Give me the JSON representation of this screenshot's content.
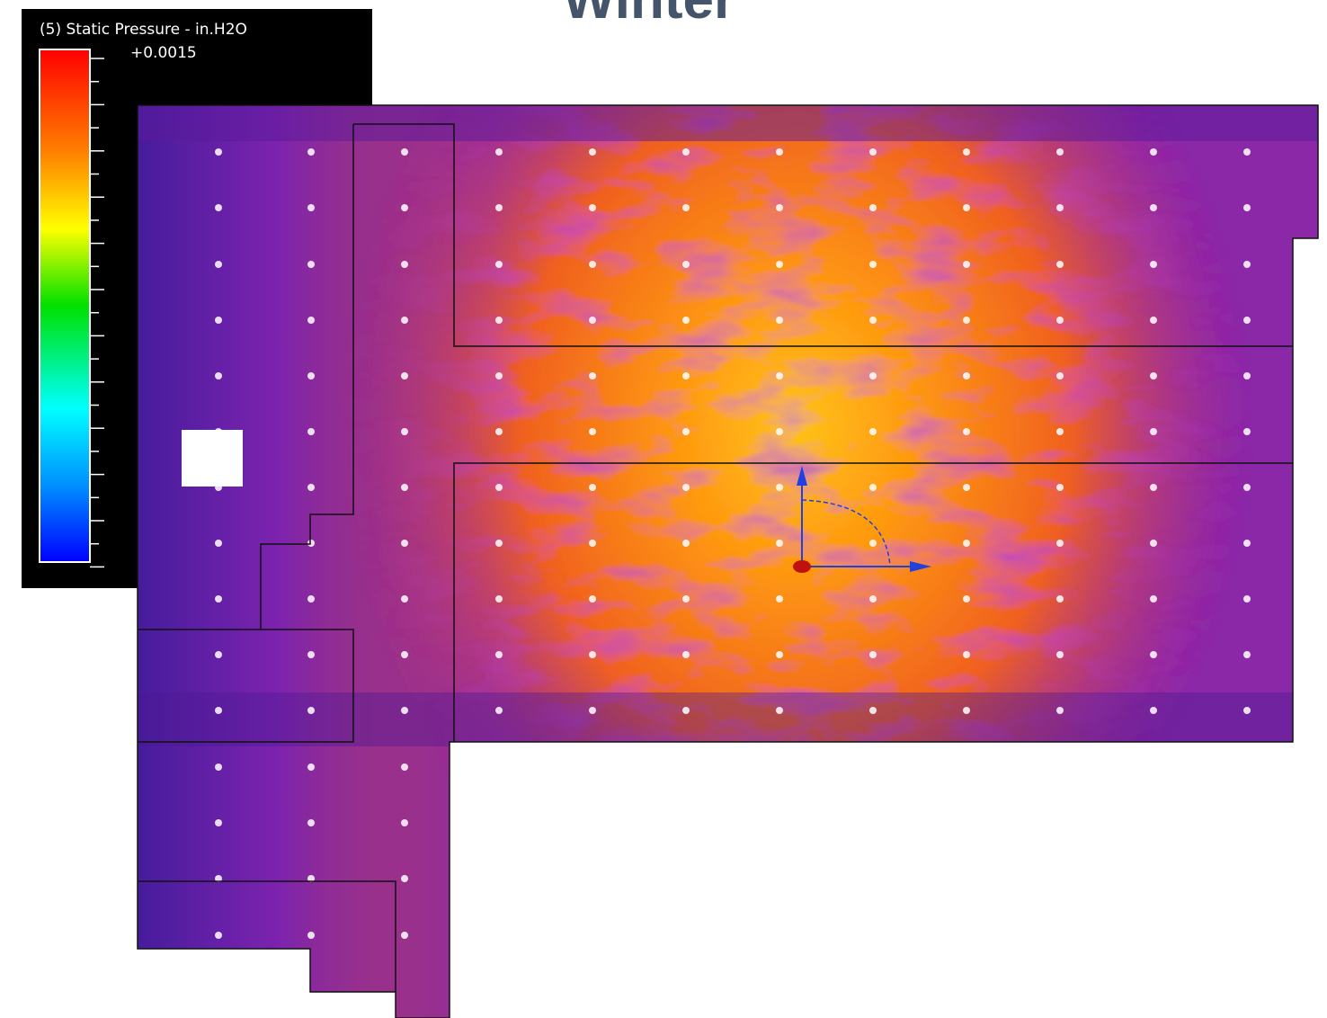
{
  "title": "Winter",
  "legend": {
    "label": "(5) Static Pressure - in.H2O",
    "max_label": "+0.0015"
  }
}
